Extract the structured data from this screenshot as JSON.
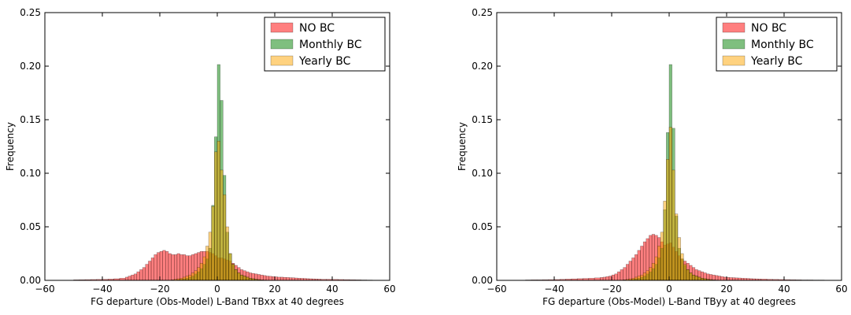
{
  "chart_data": [
    {
      "type": "histogram",
      "title": "",
      "xlabel": "FG departure (Obs-Model) L-Band TBxx at 40 degrees",
      "ylabel": "Frequency",
      "xlim": [
        -60,
        60
      ],
      "ylim": [
        0,
        0.25
      ],
      "xticks": [
        "−60",
        "−40",
        "−20",
        "0",
        "20",
        "40",
        "60"
      ],
      "yticks": [
        "0.00",
        "0.05",
        "0.10",
        "0.15",
        "0.20",
        "0.25"
      ],
      "legend_position": "top-right",
      "grid": false,
      "series": [
        {
          "name": "NO BC",
          "color": "#ff0000",
          "opacity": 0.5,
          "bins_x": [
            -50,
            -48,
            -46,
            -44,
            -42,
            -40,
            -38,
            -36,
            -34,
            -32,
            -31,
            -30,
            -29,
            -28,
            -27,
            -26,
            -25,
            -24,
            -23,
            -22,
            -21,
            -20,
            -19,
            -18,
            -17,
            -16,
            -15,
            -14,
            -13,
            -12,
            -11,
            -10,
            -9,
            -8,
            -7,
            -6,
            -5,
            -4,
            -3,
            -2,
            -1,
            0,
            1,
            2,
            3,
            4,
            5,
            6,
            7,
            8,
            9,
            10,
            11,
            12,
            13,
            14,
            15,
            16,
            17,
            18,
            19,
            20,
            21,
            22,
            23,
            24,
            25,
            26,
            27,
            28,
            29,
            30,
            31,
            32,
            33,
            34,
            35,
            36,
            38,
            40,
            42,
            44,
            46,
            48,
            50,
            52
          ],
          "values": [
            0.0005,
            0.0006,
            0.0007,
            0.0008,
            0.0009,
            0.001,
            0.0012,
            0.0015,
            0.002,
            0.003,
            0.004,
            0.005,
            0.006,
            0.008,
            0.01,
            0.012,
            0.015,
            0.018,
            0.021,
            0.024,
            0.026,
            0.027,
            0.028,
            0.027,
            0.025,
            0.024,
            0.024,
            0.025,
            0.024,
            0.024,
            0.023,
            0.023,
            0.024,
            0.025,
            0.026,
            0.027,
            0.027,
            0.027,
            0.026,
            0.025,
            0.023,
            0.021,
            0.021,
            0.02,
            0.019,
            0.018,
            0.016,
            0.014,
            0.012,
            0.01,
            0.009,
            0.008,
            0.007,
            0.0065,
            0.006,
            0.0055,
            0.005,
            0.0045,
            0.004,
            0.0038,
            0.0035,
            0.0033,
            0.003,
            0.003,
            0.0028,
            0.0027,
            0.0025,
            0.0024,
            0.0022,
            0.002,
            0.0019,
            0.0018,
            0.0016,
            0.0015,
            0.0014,
            0.0013,
            0.0012,
            0.001,
            0.001,
            0.0009,
            0.0008,
            0.0007,
            0.0006,
            0.0005,
            0.0004,
            0.0003
          ]
        },
        {
          "name": "Monthly BC",
          "color": "#008000",
          "opacity": 0.5,
          "bins_x": [
            -14,
            -13,
            -12,
            -11,
            -10,
            -9,
            -8,
            -7,
            -6,
            -5,
            -4,
            -3,
            -2,
            -1,
            0,
            1,
            2,
            3,
            4,
            5,
            6,
            7,
            8,
            9,
            10,
            11,
            12,
            13,
            14
          ],
          "values": [
            0.0005,
            0.001,
            0.0015,
            0.002,
            0.003,
            0.004,
            0.006,
            0.008,
            0.011,
            0.015,
            0.02,
            0.03,
            0.07,
            0.134,
            0.2015,
            0.168,
            0.098,
            0.045,
            0.025,
            0.015,
            0.01,
            0.007,
            0.005,
            0.004,
            0.003,
            0.002,
            0.0015,
            0.001,
            0.0005
          ]
        },
        {
          "name": "Yearly BC",
          "color": "#ffa500",
          "opacity": 0.5,
          "bins_x": [
            -16,
            -15,
            -14,
            -13,
            -12,
            -11,
            -10,
            -9,
            -8,
            -7,
            -6,
            -5,
            -4,
            -3,
            -2,
            -1,
            0,
            1,
            2,
            3,
            4,
            5,
            6,
            7,
            8,
            9,
            10,
            11,
            12,
            13,
            14,
            15,
            16
          ],
          "values": [
            0.0005,
            0.001,
            0.0015,
            0.002,
            0.003,
            0.004,
            0.005,
            0.007,
            0.009,
            0.012,
            0.016,
            0.022,
            0.032,
            0.045,
            0.069,
            0.12,
            0.13,
            0.103,
            0.08,
            0.05,
            0.025,
            0.015,
            0.01,
            0.007,
            0.005,
            0.004,
            0.003,
            0.002,
            0.0015,
            0.001,
            0.0008,
            0.0005,
            0.0003
          ]
        }
      ]
    },
    {
      "type": "histogram",
      "title": "",
      "xlabel": "FG departure (Obs-Model) L-Band TByy at 40 degrees",
      "ylabel": "Frequency",
      "xlim": [
        -60,
        60
      ],
      "ylim": [
        0,
        0.25
      ],
      "xticks": [
        "−60",
        "−40",
        "−20",
        "0",
        "20",
        "40",
        "60"
      ],
      "yticks": [
        "0.00",
        "0.05",
        "0.10",
        "0.15",
        "0.20",
        "0.25"
      ],
      "legend_position": "top-right",
      "grid": false,
      "series": [
        {
          "name": "NO BC",
          "color": "#ff0000",
          "opacity": 0.5,
          "bins_x": [
            -50,
            -48,
            -46,
            -44,
            -42,
            -40,
            -38,
            -36,
            -34,
            -32,
            -30,
            -28,
            -26,
            -24,
            -23,
            -22,
            -21,
            -20,
            -19,
            -18,
            -17,
            -16,
            -15,
            -14,
            -13,
            -12,
            -11,
            -10,
            -9,
            -8,
            -7,
            -6,
            -5,
            -4,
            -3,
            -2,
            -1,
            0,
            1,
            2,
            3,
            4,
            5,
            6,
            7,
            8,
            9,
            10,
            11,
            12,
            13,
            14,
            15,
            16,
            17,
            18,
            19,
            20,
            21,
            22,
            23,
            24,
            25,
            26,
            27,
            28,
            29,
            30,
            31,
            32,
            34,
            36,
            38,
            40,
            42,
            44,
            46,
            48,
            50,
            52
          ],
          "values": [
            0.0004,
            0.0005,
            0.0005,
            0.0006,
            0.0007,
            0.0008,
            0.001,
            0.0012,
            0.0014,
            0.0016,
            0.0018,
            0.002,
            0.0023,
            0.0027,
            0.003,
            0.0035,
            0.004,
            0.005,
            0.006,
            0.008,
            0.01,
            0.012,
            0.015,
            0.018,
            0.021,
            0.024,
            0.028,
            0.032,
            0.036,
            0.039,
            0.042,
            0.043,
            0.042,
            0.04,
            0.036,
            0.033,
            0.034,
            0.035,
            0.031,
            0.027,
            0.023,
            0.02,
            0.018,
            0.016,
            0.014,
            0.012,
            0.01,
            0.009,
            0.008,
            0.007,
            0.006,
            0.0055,
            0.005,
            0.0045,
            0.004,
            0.0035,
            0.003,
            0.0028,
            0.0026,
            0.0025,
            0.0023,
            0.0022,
            0.002,
            0.0019,
            0.0018,
            0.0016,
            0.0015,
            0.0014,
            0.0013,
            0.0012,
            0.001,
            0.0009,
            0.0008,
            0.0007,
            0.0006,
            0.0005,
            0.0004,
            0.0004,
            0.0003,
            0.0003
          ]
        },
        {
          "name": "Monthly BC",
          "color": "#008000",
          "opacity": 0.5,
          "bins_x": [
            -14,
            -13,
            -12,
            -11,
            -10,
            -9,
            -8,
            -7,
            -6,
            -5,
            -4,
            -3,
            -2,
            -1,
            0,
            1,
            2,
            3,
            4,
            5,
            6,
            7,
            8,
            9,
            10,
            11,
            12,
            13,
            14
          ],
          "values": [
            0.0005,
            0.001,
            0.0015,
            0.002,
            0.003,
            0.004,
            0.006,
            0.008,
            0.011,
            0.015,
            0.021,
            0.03,
            0.066,
            0.138,
            0.2015,
            0.142,
            0.06,
            0.03,
            0.02,
            0.014,
            0.01,
            0.007,
            0.005,
            0.004,
            0.003,
            0.002,
            0.0015,
            0.001,
            0.0005
          ]
        },
        {
          "name": "Yearly BC",
          "color": "#ffa500",
          "opacity": 0.5,
          "bins_x": [
            -16,
            -15,
            -14,
            -13,
            -12,
            -11,
            -10,
            -9,
            -8,
            -7,
            -6,
            -5,
            -4,
            -3,
            -2,
            -1,
            0,
            1,
            2,
            3,
            4,
            5,
            6,
            7,
            8,
            9,
            10,
            11,
            12,
            13,
            14,
            15,
            16
          ],
          "values": [
            0.0005,
            0.001,
            0.0015,
            0.002,
            0.003,
            0.004,
            0.005,
            0.007,
            0.009,
            0.012,
            0.016,
            0.022,
            0.032,
            0.045,
            0.074,
            0.113,
            0.143,
            0.103,
            0.062,
            0.04,
            0.025,
            0.015,
            0.01,
            0.007,
            0.005,
            0.004,
            0.003,
            0.002,
            0.0015,
            0.001,
            0.0008,
            0.0005,
            0.0003
          ]
        }
      ]
    }
  ]
}
